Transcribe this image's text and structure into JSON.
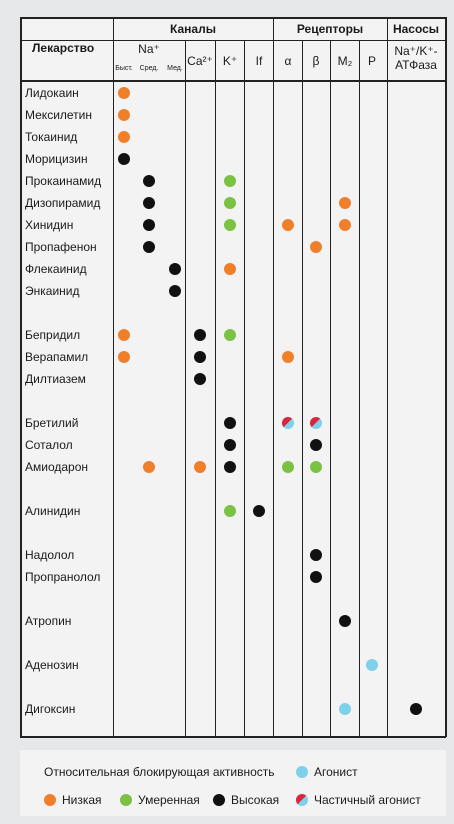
{
  "table": {
    "groups": [
      "Каналы",
      "Рецепторы",
      "Насосы"
    ],
    "drug_header": "Лекарство",
    "na_header": "Na⁺",
    "columns": [
      "Быст.",
      "Сред.",
      "Мед.",
      "Ca²⁺",
      "K⁺",
      "If",
      "α",
      "β",
      "M₂",
      "P",
      "Na⁺/K⁺-АТФаза"
    ],
    "row_groups": [
      [
        {
          "drug": "Лидокаин",
          "marks": [
            {
              "column": "Быст.",
              "level": "Низкая"
            }
          ]
        },
        {
          "drug": "Мексилетин",
          "marks": [
            {
              "column": "Быст.",
              "level": "Низкая"
            }
          ]
        },
        {
          "drug": "Токаинид",
          "marks": [
            {
              "column": "Быст.",
              "level": "Низкая"
            }
          ]
        },
        {
          "drug": "Морицизин",
          "marks": [
            {
              "column": "Быст.",
              "level": "Высокая"
            }
          ]
        },
        {
          "drug": "Прокаинамид",
          "marks": [
            {
              "column": "Сред.",
              "level": "Высокая"
            },
            {
              "column": "K⁺",
              "level": "Умеренная"
            }
          ]
        },
        {
          "drug": "Дизопирамид",
          "marks": [
            {
              "column": "Сред.",
              "level": "Высокая"
            },
            {
              "column": "K⁺",
              "level": "Умеренная"
            },
            {
              "column": "M₂",
              "level": "Низкая"
            }
          ]
        },
        {
          "drug": "Хинидин",
          "marks": [
            {
              "column": "Сред.",
              "level": "Высокая"
            },
            {
              "column": "K⁺",
              "level": "Умеренная"
            },
            {
              "column": "α",
              "level": "Низкая"
            },
            {
              "column": "M₂",
              "level": "Низкая"
            }
          ]
        },
        {
          "drug": "Пропафенон",
          "marks": [
            {
              "column": "Сред.",
              "level": "Высокая"
            },
            {
              "column": "β",
              "level": "Низкая"
            }
          ]
        },
        {
          "drug": "Флекаинид",
          "marks": [
            {
              "column": "Мед.",
              "level": "Высокая"
            },
            {
              "column": "K⁺",
              "level": "Низкая"
            }
          ]
        },
        {
          "drug": "Энкаинид",
          "marks": [
            {
              "column": "Мед.",
              "level": "Высокая"
            }
          ]
        }
      ],
      [
        {
          "drug": "Бепридил",
          "marks": [
            {
              "column": "Быст.",
              "level": "Низкая"
            },
            {
              "column": "Ca²⁺",
              "level": "Высокая"
            },
            {
              "column": "K⁺",
              "level": "Умеренная"
            }
          ]
        },
        {
          "drug": "Верапамил",
          "marks": [
            {
              "column": "Быст.",
              "level": "Низкая"
            },
            {
              "column": "Ca²⁺",
              "level": "Высокая"
            },
            {
              "column": "α",
              "level": "Низкая"
            }
          ]
        },
        {
          "drug": "Дилтиазем",
          "marks": [
            {
              "column": "Ca²⁺",
              "level": "Высокая"
            }
          ]
        }
      ],
      [
        {
          "drug": "Бретилий",
          "marks": [
            {
              "column": "K⁺",
              "level": "Высокая"
            },
            {
              "column": "α",
              "level": "Частичный агонист"
            },
            {
              "column": "β",
              "level": "Частичный агонист"
            }
          ]
        },
        {
          "drug": "Соталол",
          "marks": [
            {
              "column": "K⁺",
              "level": "Высокая"
            },
            {
              "column": "β",
              "level": "Высокая"
            }
          ]
        },
        {
          "drug": "Амиодарон",
          "marks": [
            {
              "column": "Сред.",
              "level": "Низкая"
            },
            {
              "column": "Ca²⁺",
              "level": "Низкая"
            },
            {
              "column": "K⁺",
              "level": "Высокая"
            },
            {
              "column": "α",
              "level": "Умеренная"
            },
            {
              "column": "β",
              "level": "Умеренная"
            }
          ]
        }
      ],
      [
        {
          "drug": "Алинидин",
          "marks": [
            {
              "column": "K⁺",
              "level": "Умеренная"
            },
            {
              "column": "If",
              "level": "Высокая"
            }
          ]
        }
      ],
      [
        {
          "drug": "Надолол",
          "marks": [
            {
              "column": "β",
              "level": "Высокая"
            }
          ]
        },
        {
          "drug": "Пропранолол",
          "marks": [
            {
              "column": "β",
              "level": "Высокая"
            }
          ]
        }
      ],
      [
        {
          "drug": "Атропин",
          "marks": [
            {
              "column": "M₂",
              "level": "Высокая"
            }
          ]
        }
      ],
      [
        {
          "drug": "Аденозин",
          "marks": [
            {
              "column": "P",
              "level": "Агонист"
            }
          ]
        }
      ],
      [
        {
          "drug": "Дигоксин",
          "marks": [
            {
              "column": "M₂",
              "level": "Агонист"
            },
            {
              "column": "Na⁺/K⁺-АТФаза",
              "level": "Высокая"
            }
          ]
        }
      ]
    ],
    "legend": {
      "title": "Относительная блокирующая активность",
      "items": [
        {
          "label": "Агонист",
          "color": "#7fd0ea"
        },
        {
          "label": "Низкая",
          "color": "#f07f2a"
        },
        {
          "label": "Умеренная",
          "color": "#7cc242"
        },
        {
          "label": "Высокая",
          "color": "#111111"
        },
        {
          "label": "Частичный агонист",
          "colors": [
            "#d7263d",
            "#7fd0ea"
          ]
        }
      ]
    }
  }
}
